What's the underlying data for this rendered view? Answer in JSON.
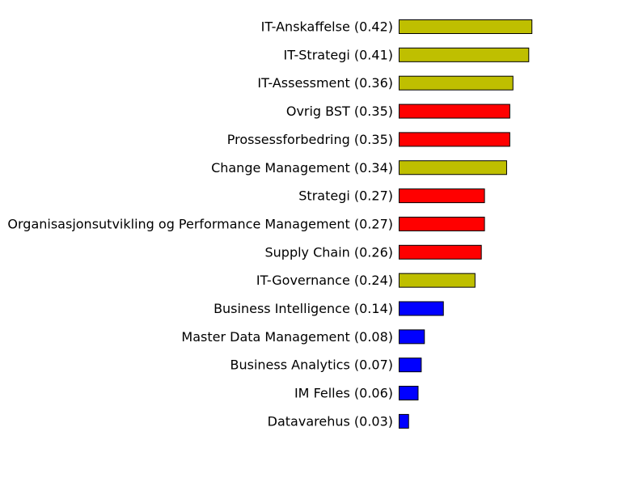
{
  "chart_data": {
    "type": "bar",
    "orientation": "horizontal",
    "xlim": [
      0,
      0.42
    ],
    "grid": false,
    "legend": "none",
    "categories": [
      "IT-Anskaffelse (0.42)",
      "IT-Strategi (0.41)",
      "IT-Assessment (0.36)",
      "Ovrig BST (0.35)",
      "Prossessforbedring (0.35)",
      "Change Management (0.34)",
      "Strategi (0.27)",
      "Organisasjonsutvikling og Performance Management (0.27)",
      "Supply Chain (0.26)",
      "IT-Governance (0.24)",
      "Business Intelligence (0.14)",
      "Master Data Management (0.08)",
      "Business Analytics (0.07)",
      "IM Felles (0.06)",
      "Datavarehus (0.03)"
    ],
    "values": [
      0.42,
      0.41,
      0.36,
      0.35,
      0.35,
      0.34,
      0.27,
      0.27,
      0.26,
      0.24,
      0.14,
      0.08,
      0.07,
      0.06,
      0.03
    ],
    "colors": [
      "#bfbf00",
      "#bfbf00",
      "#bfbf00",
      "#ff0000",
      "#ff0000",
      "#bfbf00",
      "#ff0000",
      "#ff0000",
      "#ff0000",
      "#bfbf00",
      "#0000ff",
      "#0000ff",
      "#0000ff",
      "#0000ff",
      "#0000ff"
    ]
  }
}
